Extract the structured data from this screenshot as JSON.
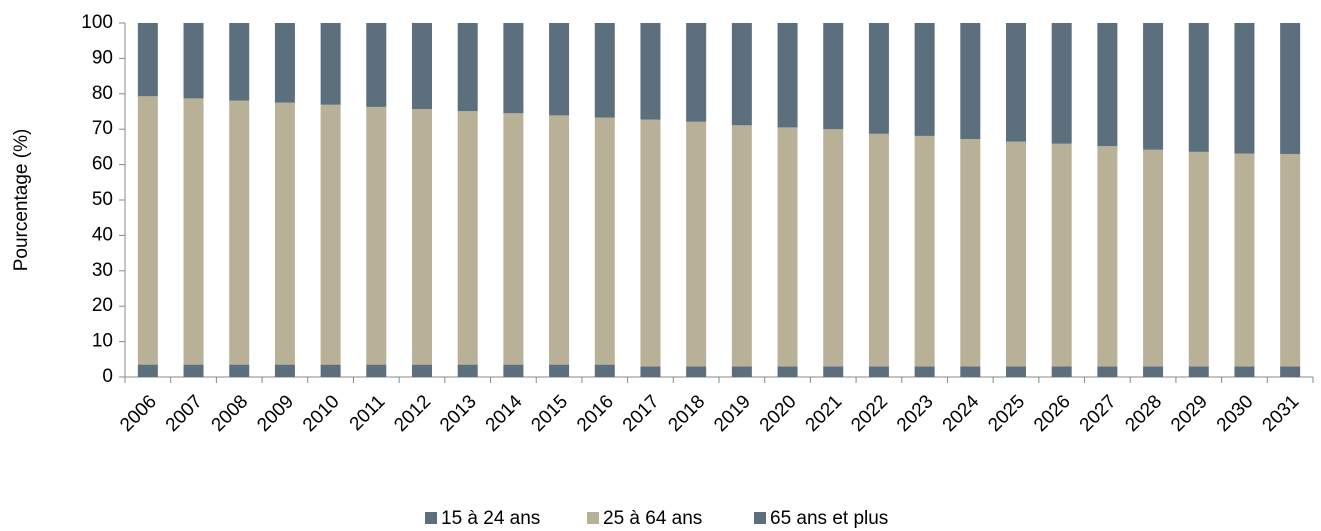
{
  "chart_data": {
    "type": "stacked_bar",
    "y_label": "Pourcentage (%)",
    "categories": [
      "2006",
      "2007",
      "2008",
      "2009",
      "2010",
      "2011",
      "2012",
      "2013",
      "2014",
      "2015",
      "2016",
      "2017",
      "2018",
      "2019",
      "2020",
      "2021",
      "2022",
      "2023",
      "2024",
      "2025",
      "2026",
      "2027",
      "2028",
      "2029",
      "2030",
      "2031"
    ],
    "series": [
      {
        "name": "15 à 24 ans",
        "color": "#5b6f7d",
        "values": [
          3.5,
          3.5,
          3.5,
          3.5,
          3.5,
          3.5,
          3.5,
          3.5,
          3.5,
          3.5,
          3.5,
          3,
          3,
          3,
          3,
          3,
          3,
          3,
          3,
          3,
          3,
          3,
          3,
          3,
          3,
          3
        ]
      },
      {
        "name": "25 à 64 ans",
        "color": "#b9b197",
        "values": [
          75.8,
          75.2,
          74.6,
          74.0,
          73.4,
          72.8,
          72.2,
          71.6,
          71.0,
          70.4,
          69.8,
          69.7,
          69.1,
          68.1,
          67.5,
          67.0,
          65.7,
          65.1,
          64.2,
          63.5,
          62.9,
          62.2,
          61.2,
          60.6,
          60.1,
          60.0
        ]
      },
      {
        "name": "65 ans et plus",
        "color": "#5b6f7d",
        "values": [
          20.7,
          21.3,
          21.9,
          22.5,
          23.1,
          23.7,
          24.3,
          24.9,
          25.5,
          26.1,
          26.7,
          27.3,
          27.9,
          28.9,
          29.5,
          30.0,
          31.3,
          31.9,
          32.8,
          33.5,
          34.1,
          34.8,
          35.8,
          36.4,
          36.9,
          37.0
        ]
      }
    ],
    "ylim": [
      0,
      100
    ],
    "yticks": [
      0,
      10,
      20,
      30,
      40,
      50,
      60,
      70,
      80,
      90,
      100
    ],
    "grid": false
  }
}
